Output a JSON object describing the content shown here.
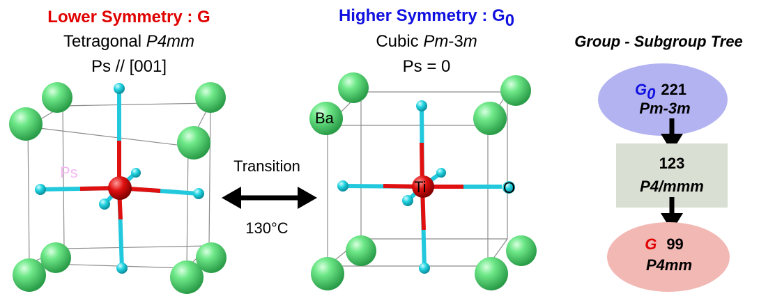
{
  "left_panel": {
    "title_prefix": "Lower Symmetry : ",
    "title_group": "G",
    "system": "Tetragonal ",
    "space_group": "P4mm",
    "polarization_prefix": "Ps // ",
    "polarization_dir": "[001]",
    "ps_label": "Ps"
  },
  "right_panel": {
    "title_prefix": "Higher Symmetry : ",
    "title_group": "G",
    "title_sub": "0",
    "system": "Cubic ",
    "space_group_a": "Pm",
    "space_group_b": "-3",
    "space_group_c": "m",
    "polarization": "Ps = 0",
    "atom_ba": "Ba",
    "atom_ti": "Ti",
    "atom_o": "O"
  },
  "transition": {
    "label": "Transition",
    "temperature": "130°C"
  },
  "tree": {
    "title": "Group - Subgroup Tree",
    "top": {
      "symbol": "G",
      "symbol_sub": "0",
      "number": "221",
      "group": "Pm-3m",
      "color": "#b3b3f2"
    },
    "middle": {
      "number": "123",
      "group": "P4/mmm",
      "color": "#d9dfd3"
    },
    "bottom": {
      "symbol": "G",
      "number": "99",
      "group": "P4mm",
      "color": "#f2b8b4"
    }
  },
  "colors": {
    "ba": "#5ee07a",
    "ti": "#e01010",
    "o": "#22d4e0",
    "bond_red": "#e01010",
    "bond_cyan": "#22c8dc"
  }
}
